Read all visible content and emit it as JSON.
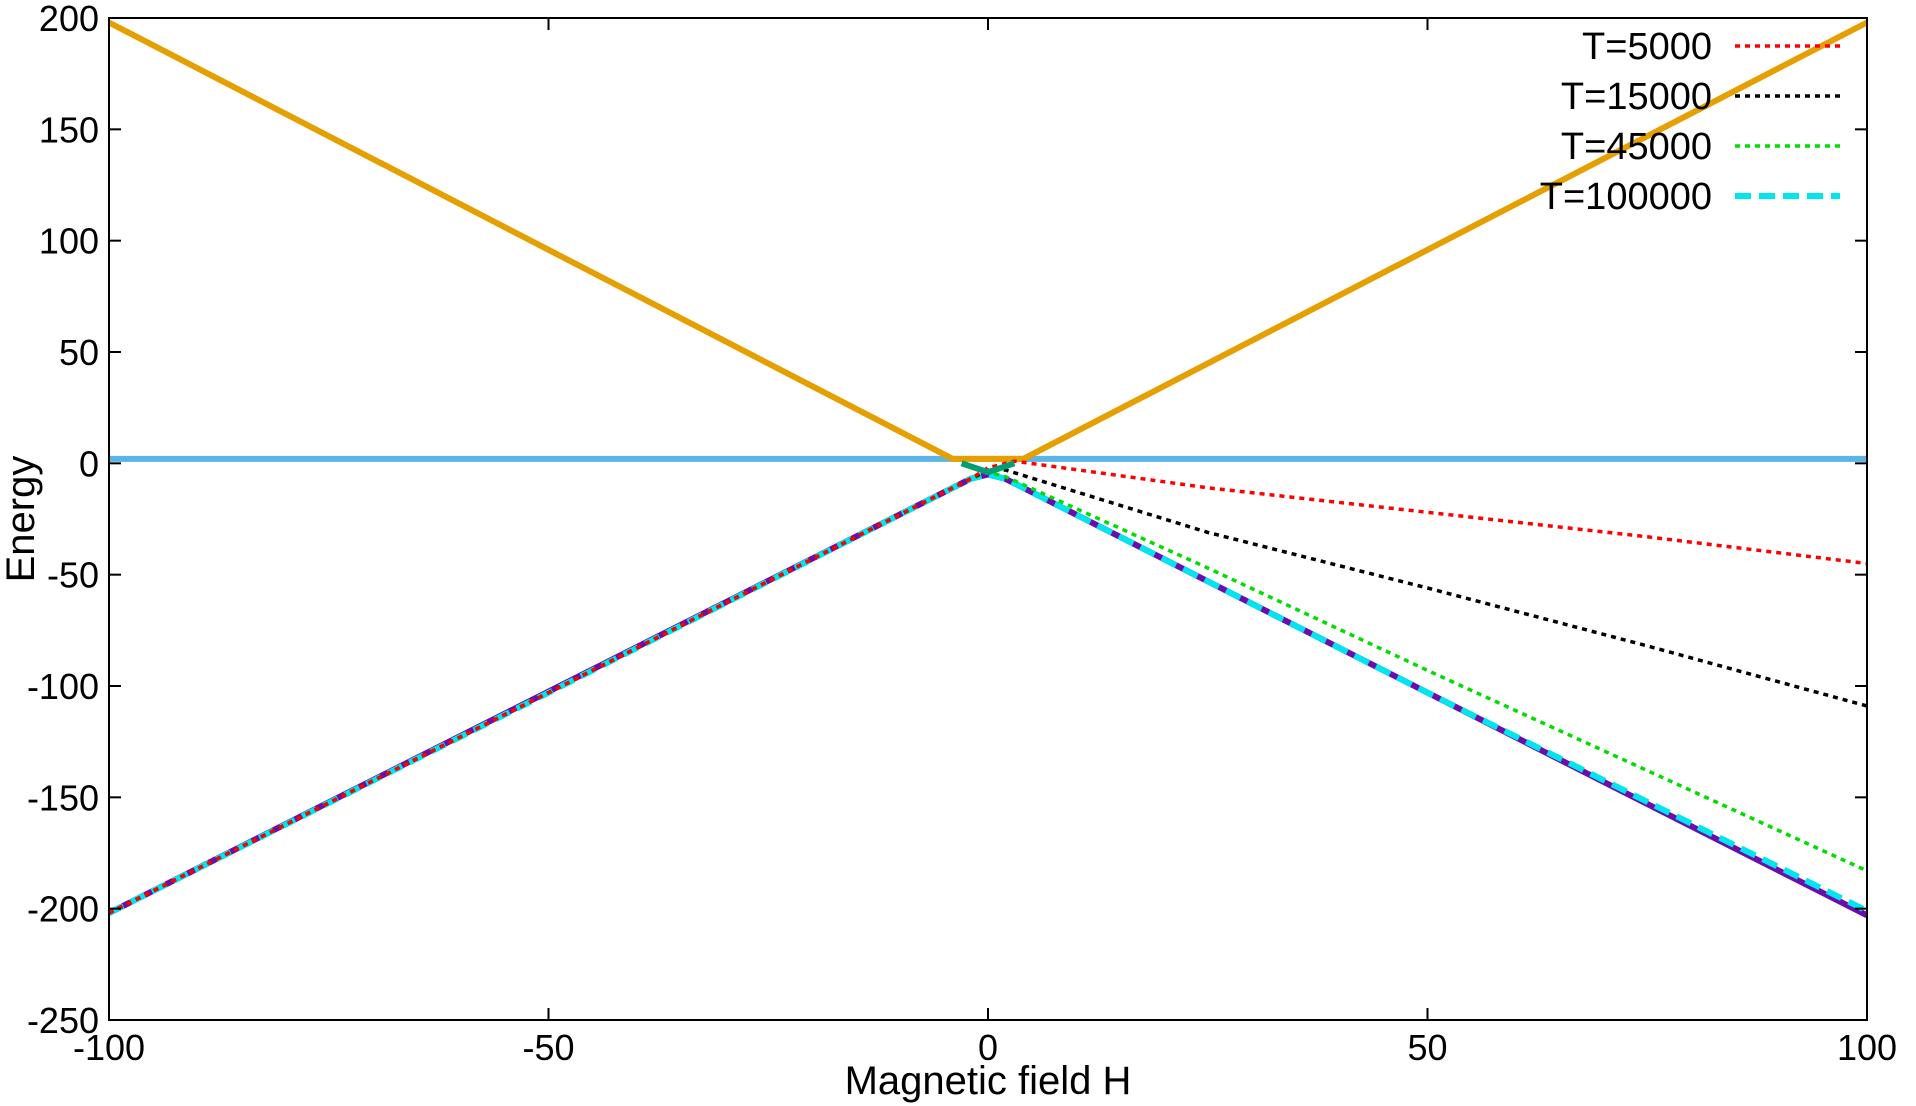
{
  "chart_data": {
    "type": "line",
    "title": "",
    "xlabel": "Magnetic field H",
    "ylabel": "Energy",
    "xlim": [
      -100,
      100
    ],
    "ylim": [
      -250,
      200
    ],
    "xticks": [
      -100,
      -50,
      0,
      50,
      100
    ],
    "yticks": [
      200,
      150,
      100,
      50,
      0,
      -50,
      -100,
      -150,
      -200,
      -250
    ],
    "grid": false,
    "legend_position": "top-right",
    "series": [
      {
        "name": "T=5000",
        "color": "#ff0000",
        "style": "dotted",
        "in_legend": true,
        "x": [
          -100,
          -50,
          -2,
          0,
          3,
          25,
          50,
          75,
          100
        ],
        "y": [
          -202,
          -103,
          -7,
          -2,
          1,
          -11,
          -22,
          -33,
          -45
        ]
      },
      {
        "name": "T=15000",
        "color": "#000000",
        "style": "dotted",
        "in_legend": true,
        "x": [
          -100,
          -50,
          -2,
          0,
          2,
          25,
          50,
          75,
          100
        ],
        "y": [
          -202,
          -103,
          -7,
          -3,
          -3,
          -31,
          -56,
          -82,
          -109
        ]
      },
      {
        "name": "T=45000",
        "color": "#00dd00",
        "style": "dotted",
        "in_legend": true,
        "x": [
          -100,
          -50,
          -2,
          0,
          2,
          25,
          50,
          75,
          100
        ],
        "y": [
          -202,
          -103,
          -7,
          -4,
          -6,
          -47,
          -93,
          -138,
          -183
        ]
      },
      {
        "name": "T=100000",
        "color": "#00e5ee",
        "style": "dashed",
        "in_legend": true,
        "x": [
          -100,
          -50,
          -2,
          0,
          2,
          50,
          100
        ],
        "y": [
          -202,
          -103,
          -7,
          -5,
          -7,
          -103,
          -201
        ]
      },
      {
        "name": "",
        "color": "#6a0dad",
        "style": "solid",
        "in_legend": false,
        "x": [
          -100,
          -2,
          0,
          2,
          100
        ],
        "y": [
          -202,
          -7,
          -5,
          -7,
          -203
        ]
      },
      {
        "name": "",
        "color": "#5ab4e5",
        "style": "solid",
        "in_legend": false,
        "x": [
          -100,
          100
        ],
        "y": [
          2,
          2
        ]
      },
      {
        "name": "",
        "color": "#e69f00",
        "style": "solid",
        "in_legend": false,
        "x": [
          -100,
          -4,
          -2,
          2,
          4,
          100
        ],
        "y": [
          198,
          2,
          2,
          2,
          2,
          198
        ]
      },
      {
        "name": "",
        "color": "#009e73",
        "style": "solid",
        "in_legend": false,
        "x": [
          -3,
          0,
          3
        ],
        "y": [
          0,
          -4,
          0
        ]
      }
    ]
  }
}
